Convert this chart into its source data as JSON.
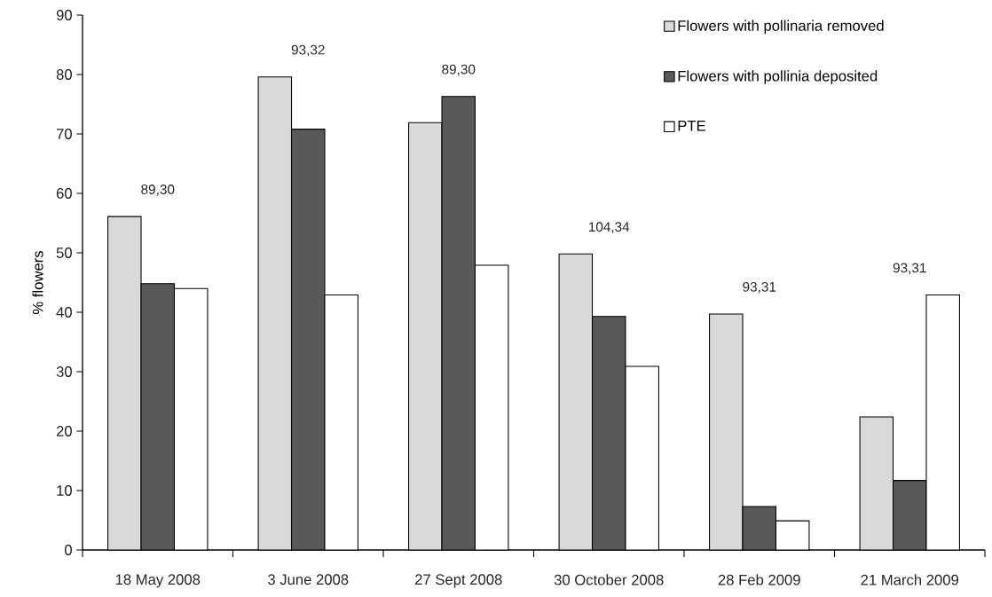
{
  "chart_data": {
    "type": "bar",
    "ylabel": "% flowers",
    "categories": [
      "18 May 2008",
      "3 June 2008",
      "27 Sept 2008",
      "30 October 2008",
      "28 Feb 2009",
      "21 March 2009"
    ],
    "series": [
      {
        "name": "Flowers with pollinaria removed",
        "color": "#d9d9d9",
        "values": [
          56.1,
          79.6,
          71.9,
          49.8,
          39.7,
          22.4
        ]
      },
      {
        "name": "Flowers with pollinia deposited",
        "color": "#595959",
        "values": [
          44.8,
          70.8,
          76.3,
          39.3,
          7.3,
          11.7
        ]
      },
      {
        "name": "PTE",
        "color": "#ffffff",
        "values": [
          44.0,
          42.9,
          47.9,
          30.9,
          4.9,
          42.9
        ]
      }
    ],
    "ylim": [
      0,
      90
    ],
    "yticks": [
      0,
      10,
      20,
      30,
      40,
      50,
      60,
      70,
      80,
      90
    ],
    "grid": false,
    "legend": "top right",
    "annotations": [
      "89,30",
      "93,32",
      "89,30",
      "104,34",
      "93,31",
      "93,31"
    ]
  }
}
